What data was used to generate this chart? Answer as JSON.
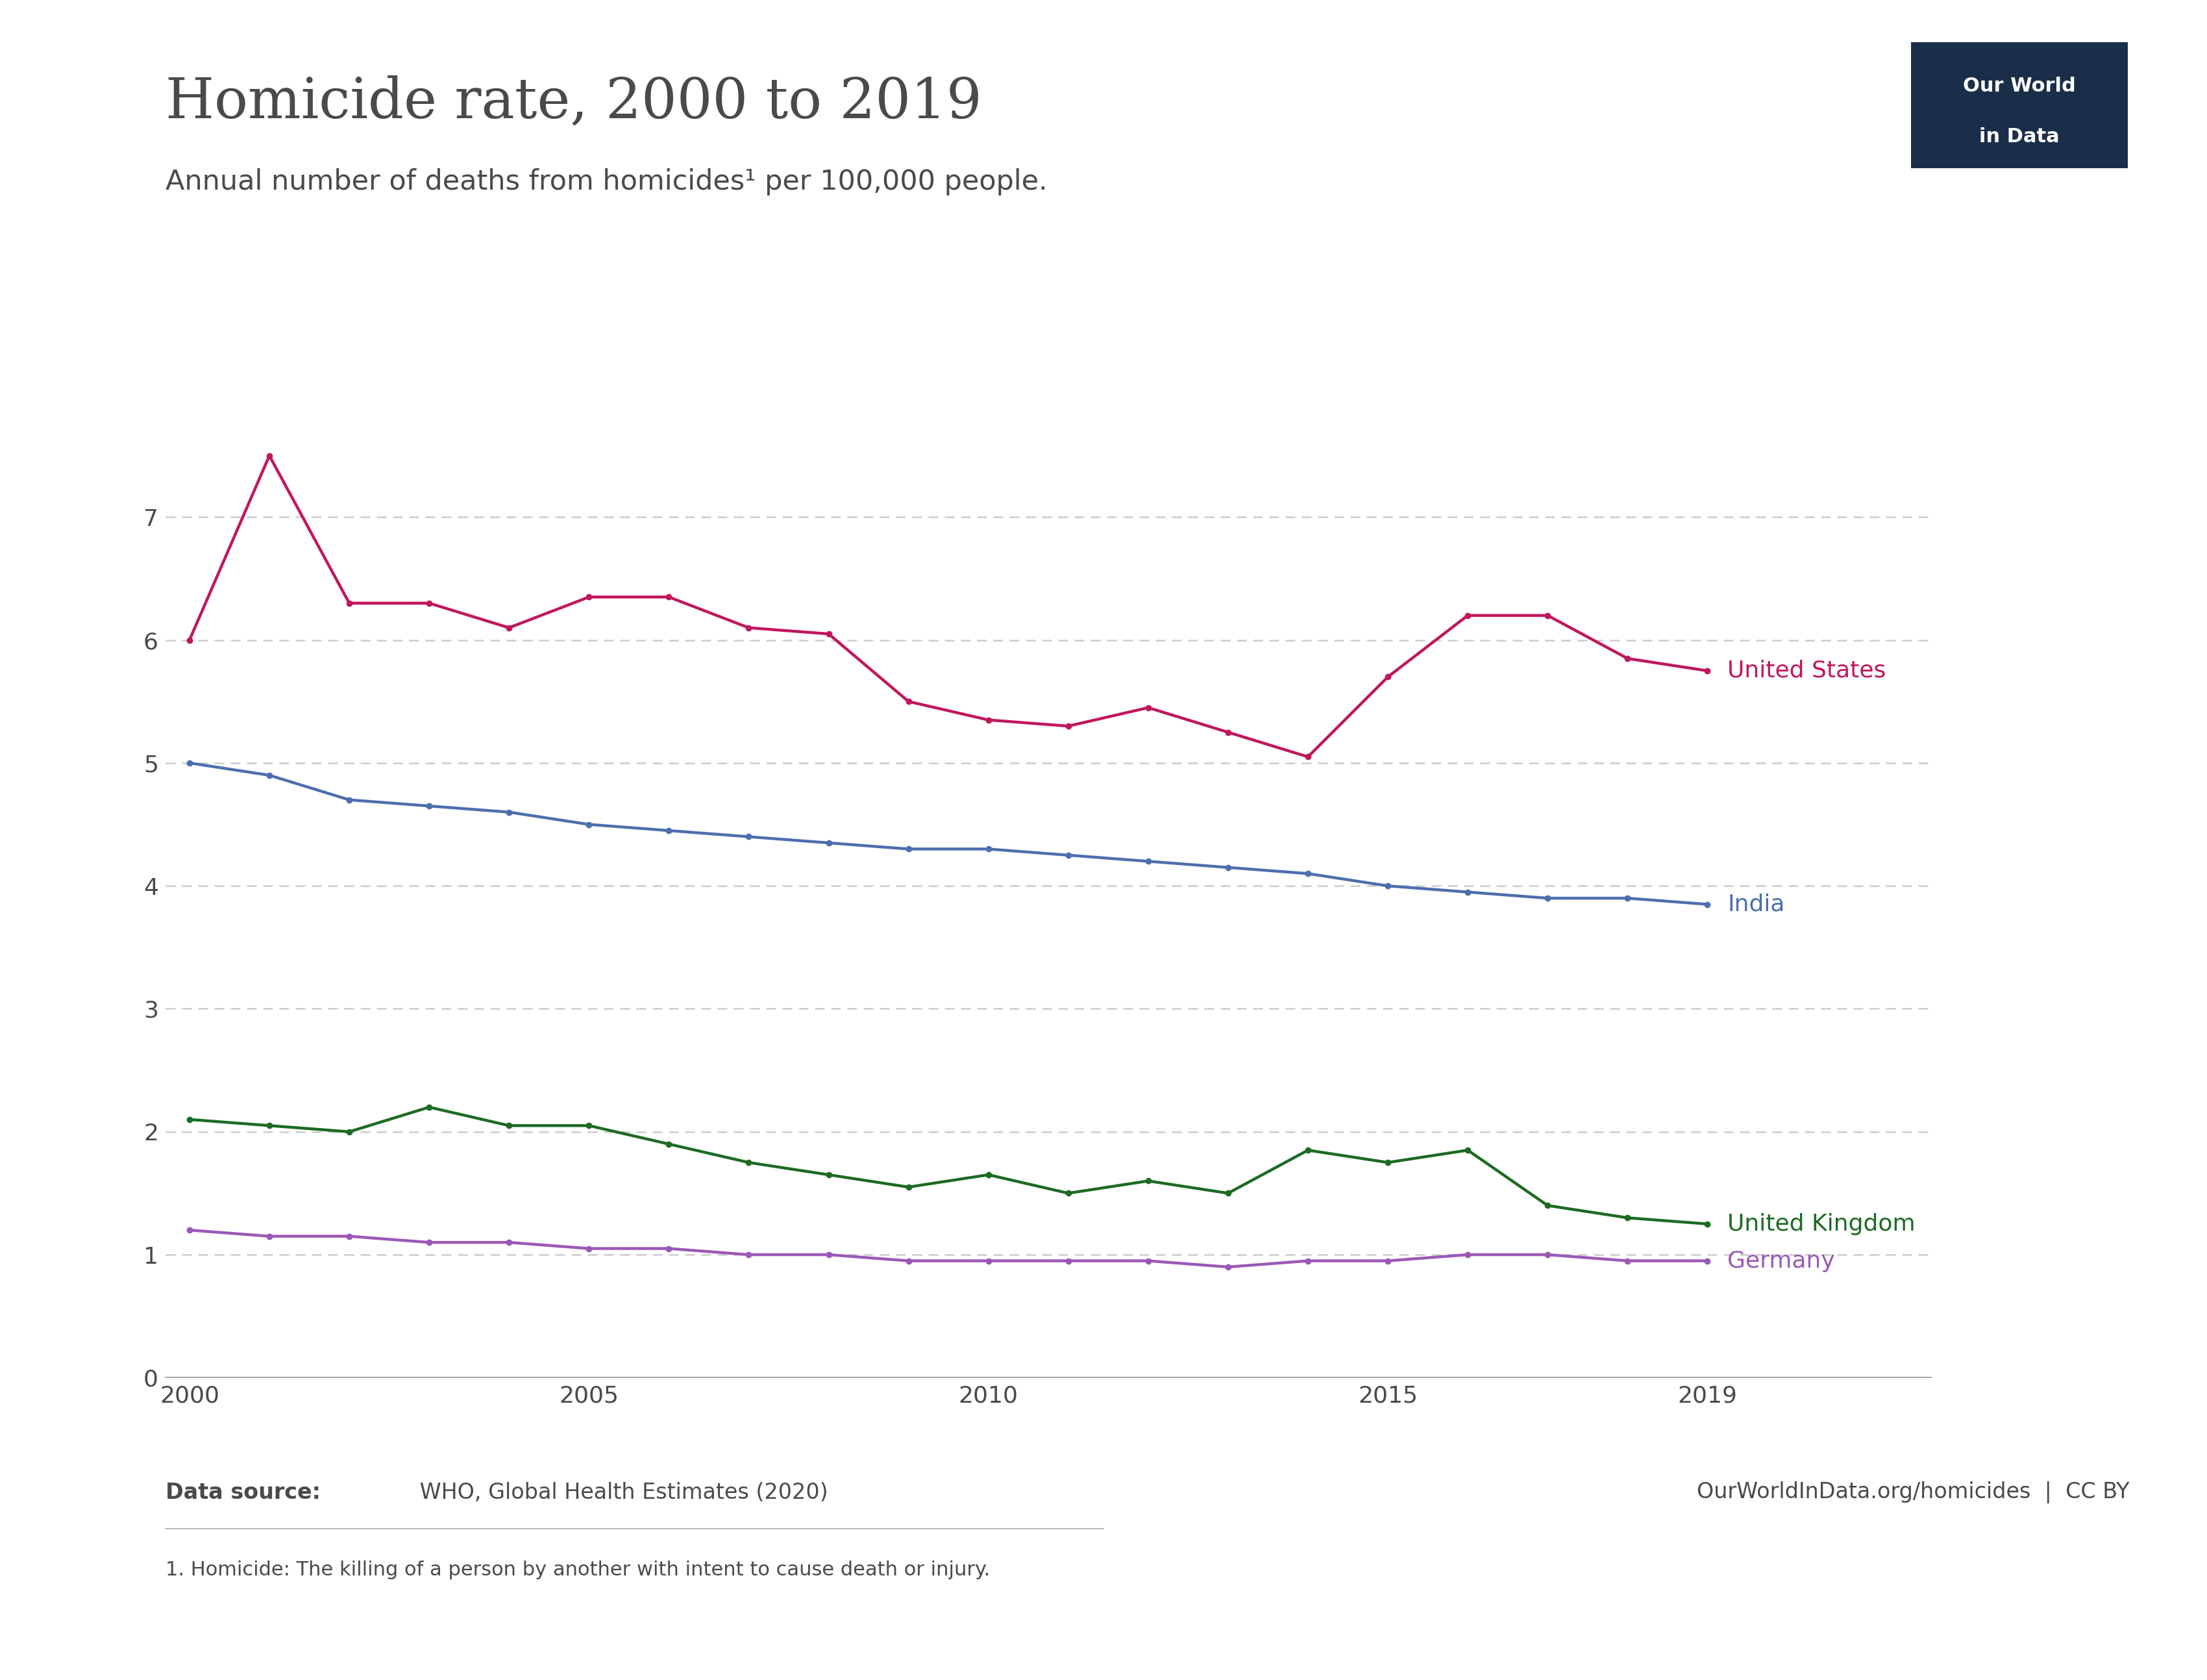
{
  "title": "Homicide rate, 2000 to 2019",
  "subtitle": "Annual number of deaths from homicides¹ per 100,000 people.",
  "footnote": "1. Homicide: The killing of a person by another with intent to cause death or injury.",
  "data_source_bold": "Data source:",
  "data_source_normal": " WHO, Global Health Estimates (2020)",
  "url": "OurWorldInData.org/homicides  |  CC BY",
  "years": [
    2000,
    2001,
    2002,
    2003,
    2004,
    2005,
    2006,
    2007,
    2008,
    2009,
    2010,
    2011,
    2012,
    2013,
    2014,
    2015,
    2016,
    2017,
    2018,
    2019
  ],
  "series": [
    {
      "name": "United States",
      "color": "#C0175D",
      "values": [
        6.0,
        7.5,
        6.3,
        6.3,
        6.1,
        6.35,
        6.35,
        6.1,
        6.05,
        5.5,
        5.35,
        5.3,
        5.45,
        5.25,
        5.05,
        5.7,
        6.2,
        6.2,
        5.85,
        5.75
      ]
    },
    {
      "name": "India",
      "color": "#4C6FAD",
      "values": [
        5.0,
        4.9,
        4.7,
        4.65,
        4.6,
        4.5,
        4.45,
        4.4,
        4.35,
        4.3,
        4.3,
        4.25,
        4.2,
        4.15,
        4.1,
        4.0,
        3.95,
        3.9,
        3.9,
        3.85
      ]
    },
    {
      "name": "United Kingdom",
      "color": "#1D6B23",
      "values": [
        2.1,
        2.05,
        2.0,
        2.2,
        2.05,
        2.05,
        1.9,
        1.75,
        1.65,
        1.55,
        1.65,
        1.5,
        1.6,
        1.5,
        1.85,
        1.75,
        1.85,
        1.4,
        1.3,
        1.25
      ]
    },
    {
      "name": "Germany",
      "color": "#9B59B6",
      "values": [
        1.2,
        1.15,
        1.15,
        1.1,
        1.1,
        1.05,
        1.05,
        1.0,
        1.0,
        0.95,
        0.95,
        0.95,
        0.95,
        0.9,
        0.95,
        0.95,
        1.0,
        1.0,
        0.95,
        0.95
      ]
    }
  ],
  "xlim": [
    2000,
    2019
  ],
  "ylim": [
    0,
    8.2
  ],
  "yticks": [
    0,
    1,
    2,
    3,
    4,
    5,
    6,
    7
  ],
  "xticks": [
    2000,
    2005,
    2010,
    2015,
    2019
  ],
  "background_color": "#FFFFFF",
  "grid_color": "#CCCCCC",
  "title_color": "#4a4a4a",
  "subtitle_color": "#4a4a4a",
  "tick_color": "#4a4a4a",
  "owid_box_bg": "#1a2e4a",
  "owid_box_text": "#FFFFFF"
}
